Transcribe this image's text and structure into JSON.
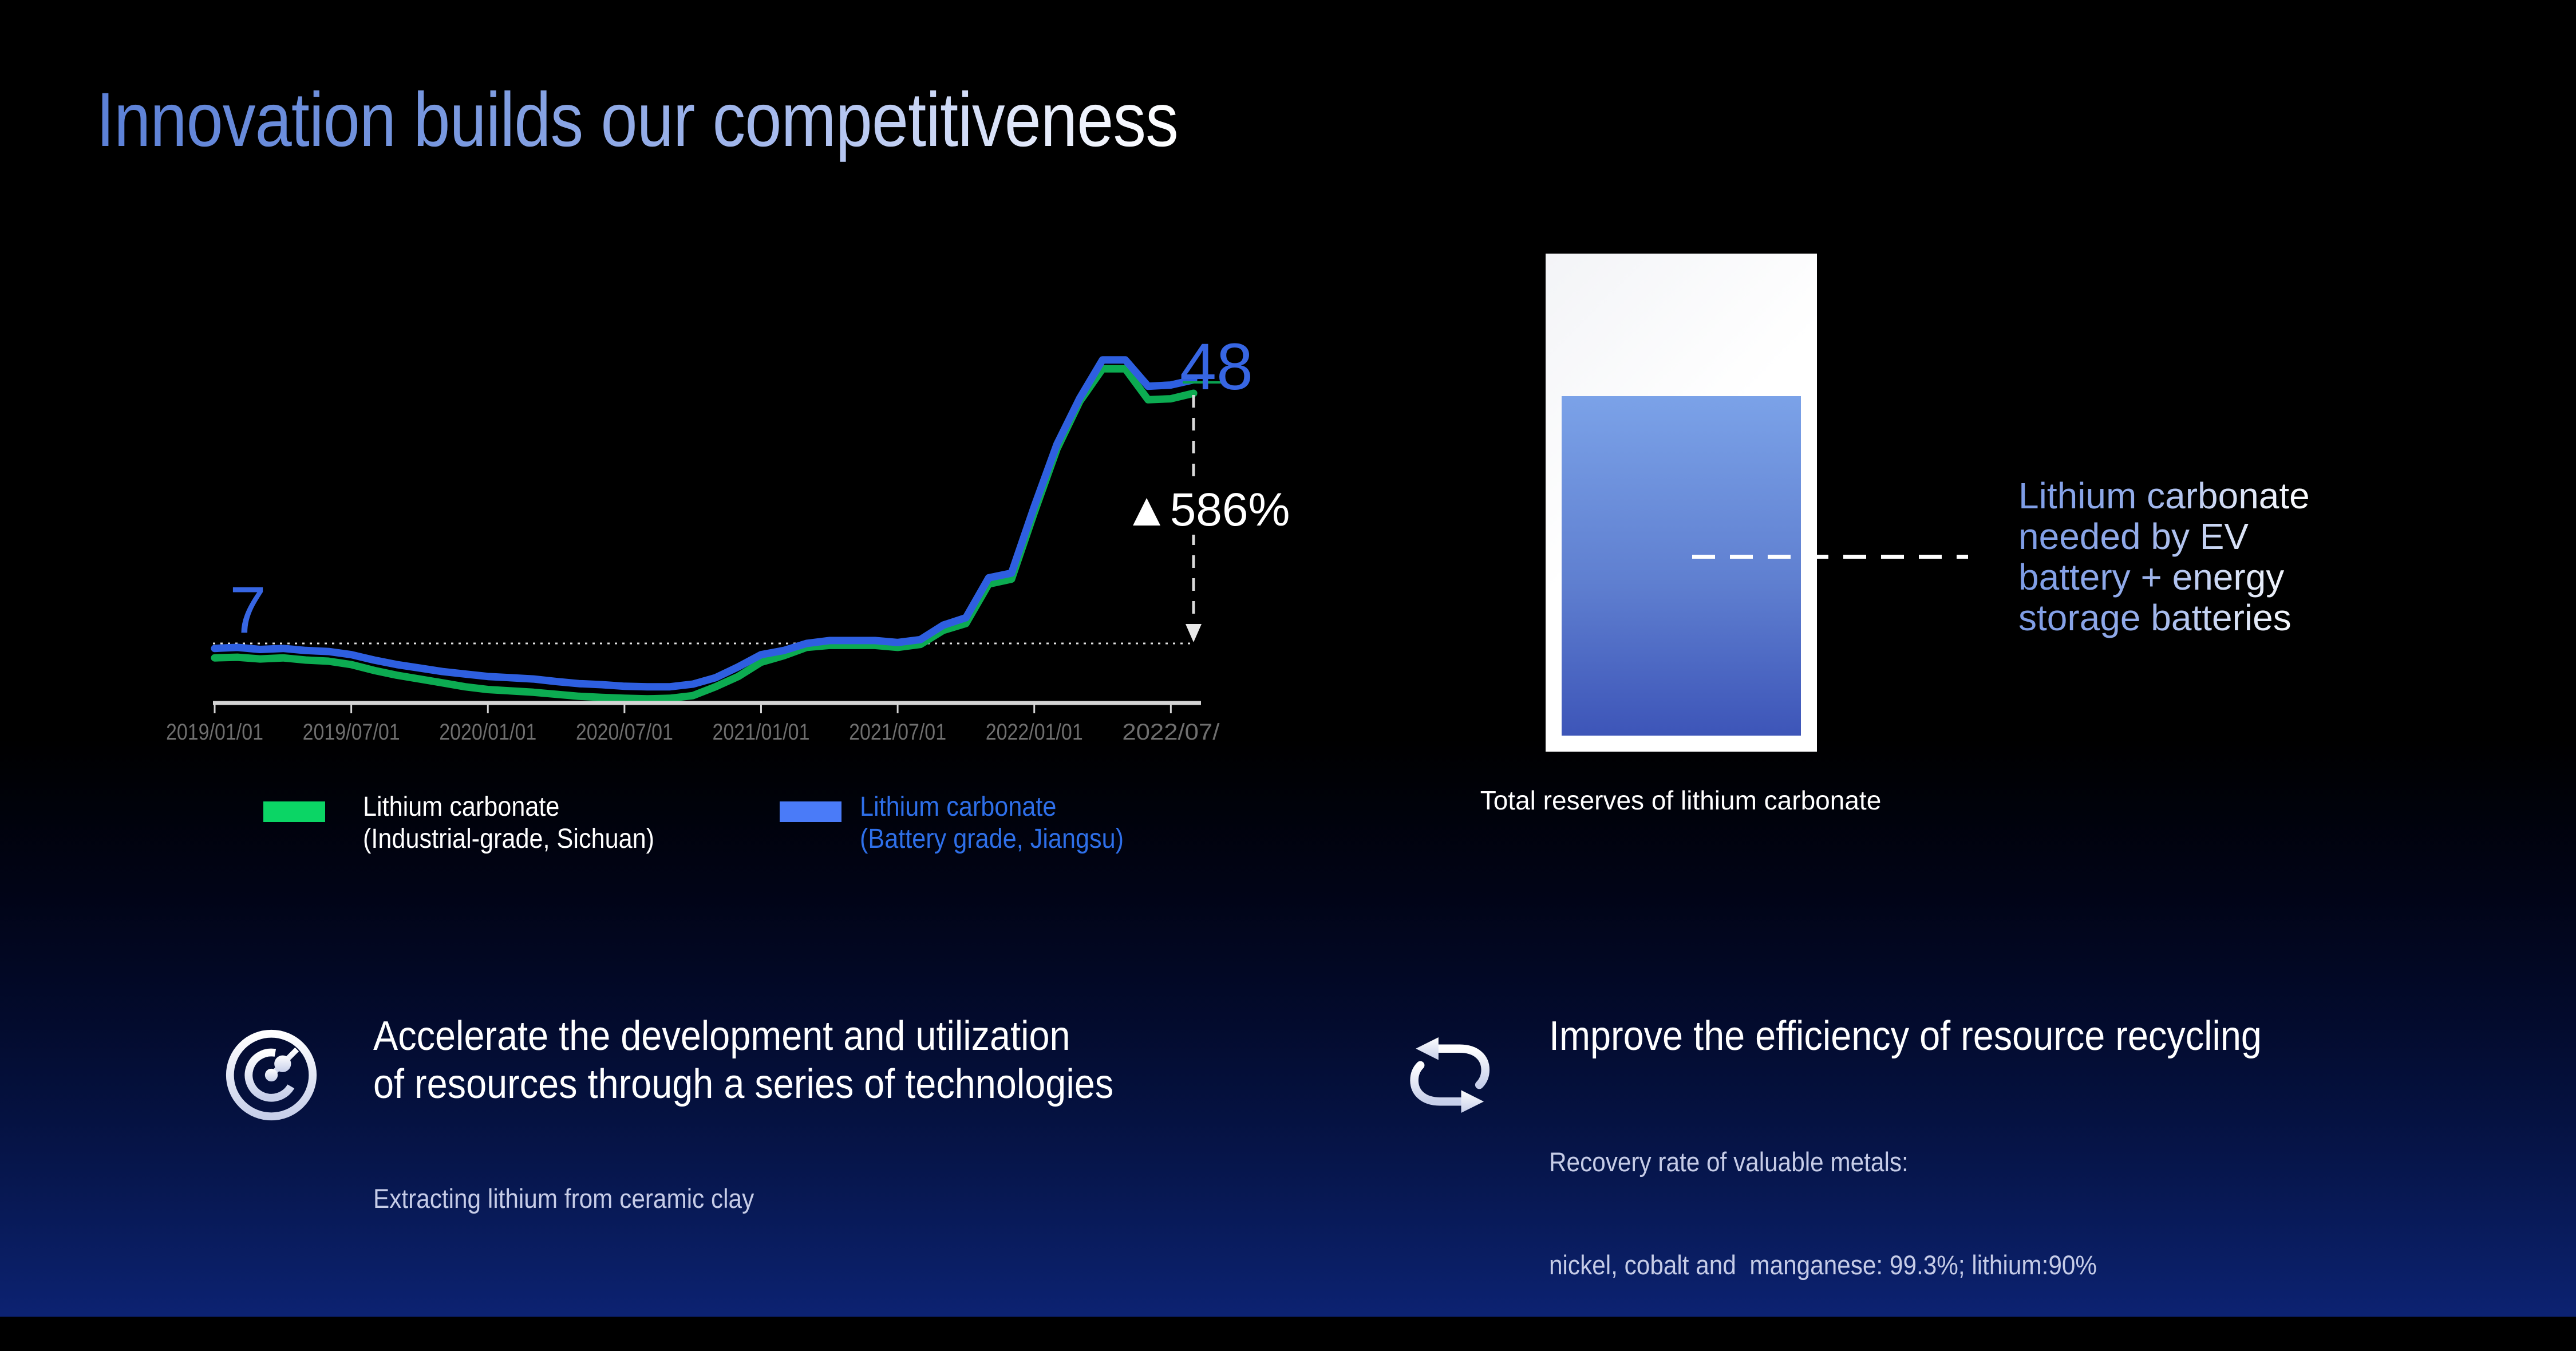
{
  "slide": {
    "title": "Innovation builds our competitiveness",
    "colors": {
      "background_bottom": "#0c2272",
      "title_gradient_start": "#5b80d7",
      "title_gradient_end": "#ffffff",
      "label_blue": "#3766e3",
      "subtext_lavender": "#c6cce7"
    }
  },
  "chart_data": {
    "type": "line",
    "title": "",
    "xlabel": "",
    "ylabel": "",
    "x_start": "2019/01",
    "x_interval": "month",
    "x_tick_labels": [
      "2019/01/01",
      "2019/07/01",
      "2020/01/01",
      "2020/07/01",
      "2021/01/01",
      "2021/07/01",
      "2022/01/01",
      "2022/07/"
    ],
    "grid": false,
    "legend_position": "bottom",
    "series": [
      {
        "name": "Lithium carbonate (Industrial-grade, Sichuan)",
        "color": "#0cab51",
        "values": [
          6.3,
          6.33,
          6.25,
          6.3,
          6.2,
          6.15,
          6.0,
          5.75,
          5.55,
          5.4,
          5.25,
          5.1,
          5.0,
          4.95,
          4.9,
          4.83,
          4.76,
          4.72,
          4.69,
          4.67,
          4.69,
          4.78,
          5.1,
          5.5,
          6.1,
          6.4,
          6.8,
          6.9,
          6.9,
          6.9,
          6.8,
          6.95,
          7.7,
          8.1,
          10.8,
          11.2,
          18.2,
          29.0,
          41.0,
          52.0,
          52.0,
          41.5,
          41.8,
          43.5
        ]
      },
      {
        "name": "Lithium carbonate (Battery grade, Jiangsu)",
        "color": "#2e5fe0",
        "values": [
          6.75,
          6.8,
          6.7,
          6.75,
          6.65,
          6.6,
          6.45,
          6.2,
          6.0,
          5.85,
          5.7,
          5.6,
          5.5,
          5.45,
          5.4,
          5.3,
          5.22,
          5.18,
          5.12,
          5.1,
          5.1,
          5.2,
          5.45,
          5.9,
          6.45,
          6.65,
          7.0,
          7.15,
          7.15,
          7.15,
          7.05,
          7.2,
          8.0,
          8.45,
          11.3,
          11.7,
          19.0,
          30.0,
          42.0,
          55.5,
          55.5,
          45.8,
          46.2,
          48.0
        ]
      }
    ],
    "annotations": {
      "start_label": "7",
      "end_label": "48",
      "change_label": "▲586%"
    },
    "layout": {
      "x0": 375,
      "dx": 39.77,
      "y_ref": 1124,
      "k": 239.2,
      "v_ref": 7,
      "axis_y": 1228,
      "axis_x1": 372,
      "axis_x2": 2098,
      "tick_every": 6,
      "tick_len": 18,
      "label_dy": 64,
      "label_textlength": 170,
      "dash_x": 2085,
      "dash_y1": 690,
      "dash_y2": 1118,
      "marker_y": 668,
      "marker_x1": 2066,
      "marker_x2": 2136,
      "marker_color": "#0aa150"
    }
  },
  "legend": {
    "items": [
      {
        "swatch_color": "#0bd565",
        "line1": "Lithium carbonate",
        "line2": "(Industrial-grade, Sichuan)",
        "text_color": "#ffffff"
      },
      {
        "swatch_color": "#4a7bf8",
        "line1": "Lithium carbonate",
        "line2": "(Battery grade, Jiangsu)",
        "text_color": "#2e6fe9"
      }
    ]
  },
  "reservoir": {
    "caption": "Total reserves of lithium carbonate",
    "label_lines": [
      "Lithium carbonate",
      "needed by EV",
      "battery + energy",
      "storage batteries"
    ]
  },
  "features": [
    {
      "icon": "target-icon",
      "title_line1": "Accelerate the development and utilization",
      "title_line2": "of resources through a series of technologies",
      "subtitle_line1": "Extracting lithium from ceramic clay",
      "subtitle_line2": ""
    },
    {
      "icon": "recycle-icon",
      "title_line1": "Improve the efficiency of resource recycling",
      "title_line2": "",
      "subtitle_line1": "Recovery rate of valuable metals:",
      "subtitle_line2": "nickel, cobalt and  manganese: 99.3%; lithium:90%"
    }
  ]
}
